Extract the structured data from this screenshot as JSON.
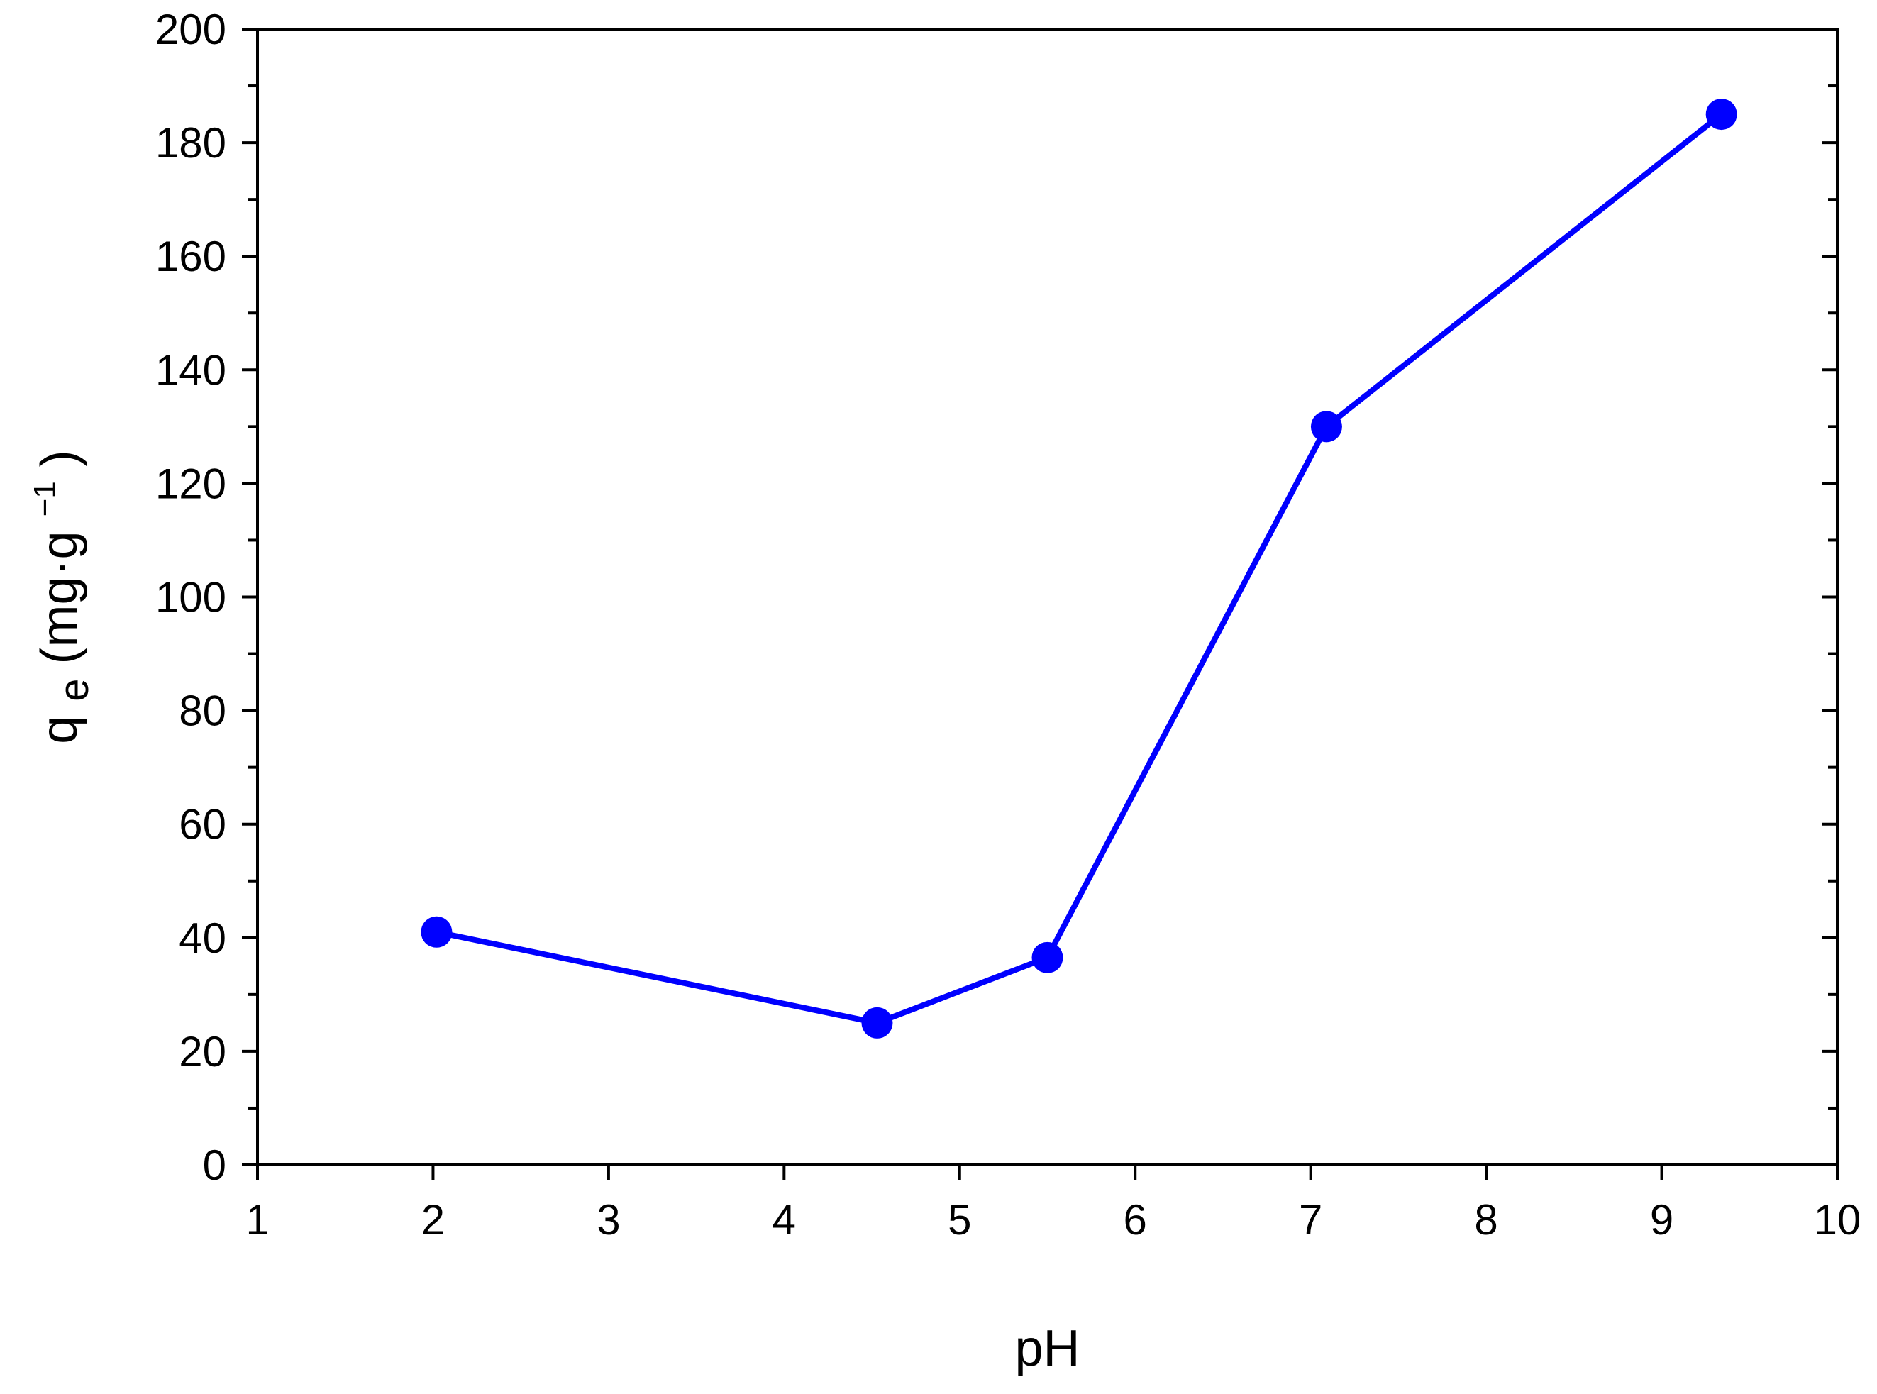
{
  "chart_data": {
    "type": "line",
    "title": "",
    "xlabel": "pH",
    "ylabel": {
      "symbol": "q",
      "subscript": "e",
      "units_open": " (mg·g",
      "superscript": "−1",
      "units_close": ")"
    },
    "xlim": [
      1,
      10
    ],
    "ylim": [
      0,
      200
    ],
    "x_ticks": [
      1,
      2,
      3,
      4,
      5,
      6,
      7,
      8,
      9,
      10
    ],
    "x_tick_labels": [
      "1",
      "2",
      "3",
      "4",
      "5",
      "6",
      "7",
      "8",
      "9",
      "10"
    ],
    "x_minor_step": 1,
    "y_ticks": [
      0,
      20,
      40,
      60,
      80,
      100,
      120,
      140,
      160,
      180,
      200
    ],
    "y_tick_labels": [
      "0",
      "20",
      "40",
      "60",
      "80",
      "100",
      "120",
      "140",
      "160",
      "180",
      "200"
    ],
    "y_minor_step": 10,
    "grid": false,
    "series": [
      {
        "color": "#0000ff",
        "marker": "filled-circle",
        "x": [
          2.02,
          4.53,
          5.5,
          7.09,
          9.34
        ],
        "y": [
          41,
          25,
          36.5,
          130,
          185
        ]
      }
    ]
  }
}
